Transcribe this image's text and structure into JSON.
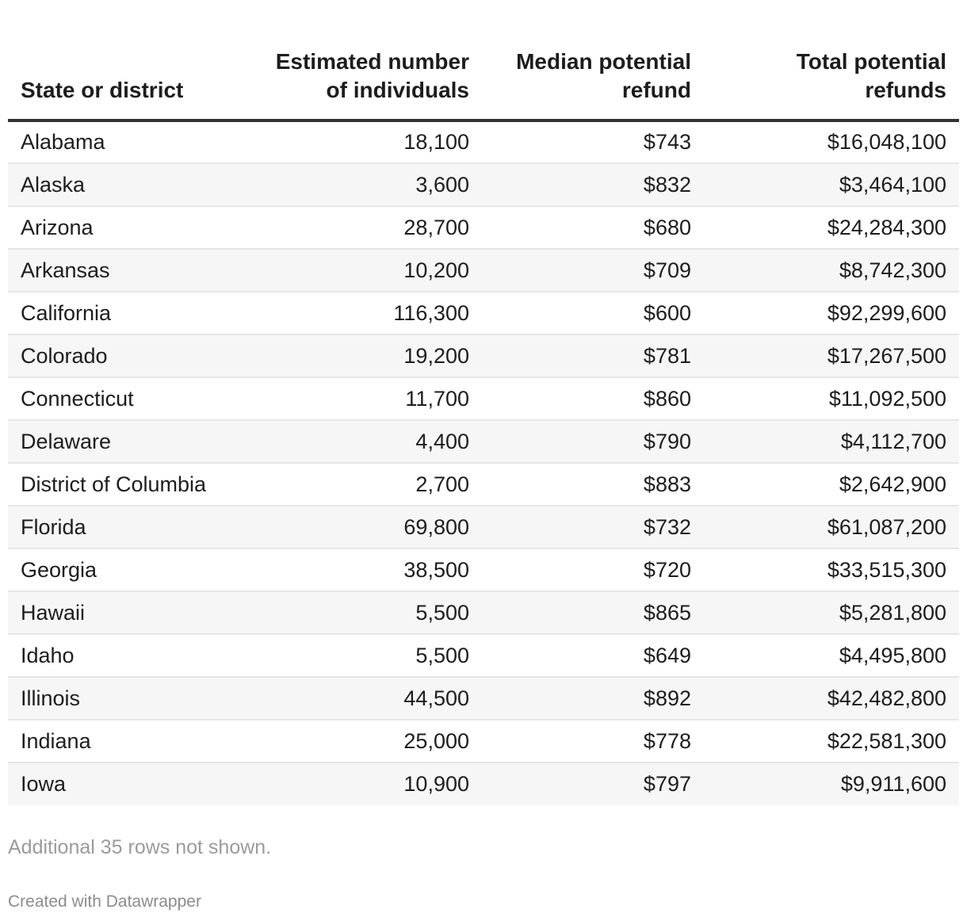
{
  "chart_data": {
    "type": "table",
    "columns": [
      {
        "label": "State or district",
        "align": "left"
      },
      {
        "label": "Estimated number of individuals",
        "align": "right"
      },
      {
        "label": "Median potential refund",
        "align": "right"
      },
      {
        "label": "Total potential refunds",
        "align": "right"
      }
    ],
    "rows": [
      [
        "Alabama",
        "18,100",
        "$743",
        "$16,048,100"
      ],
      [
        "Alaska",
        "3,600",
        "$832",
        "$3,464,100"
      ],
      [
        "Arizona",
        "28,700",
        "$680",
        "$24,284,300"
      ],
      [
        "Arkansas",
        "10,200",
        "$709",
        "$8,742,300"
      ],
      [
        "California",
        "116,300",
        "$600",
        "$92,299,600"
      ],
      [
        "Colorado",
        "19,200",
        "$781",
        "$17,267,500"
      ],
      [
        "Connecticut",
        "11,700",
        "$860",
        "$11,092,500"
      ],
      [
        "Delaware",
        "4,400",
        "$790",
        "$4,112,700"
      ],
      [
        "District of Columbia",
        "2,700",
        "$883",
        "$2,642,900"
      ],
      [
        "Florida",
        "69,800",
        "$732",
        "$61,087,200"
      ],
      [
        "Georgia",
        "38,500",
        "$720",
        "$33,515,300"
      ],
      [
        "Hawaii",
        "5,500",
        "$865",
        "$5,281,800"
      ],
      [
        "Idaho",
        "5,500",
        "$649",
        "$4,495,800"
      ],
      [
        "Illinois",
        "44,500",
        "$892",
        "$42,482,800"
      ],
      [
        "Indiana",
        "25,000",
        "$778",
        "$22,581,300"
      ],
      [
        "Iowa",
        "10,900",
        "$797",
        "$9,911,600"
      ]
    ]
  },
  "footer": {
    "rows_note": "Additional 35 rows not shown.",
    "credit": "Created with Datawrapper"
  },
  "colors": {
    "text": "#1d1d1d",
    "header_rule": "#333333",
    "row_stripe": "#f6f6f6",
    "row_divider": "#e6e6e6",
    "muted": "#9b9b9b"
  }
}
